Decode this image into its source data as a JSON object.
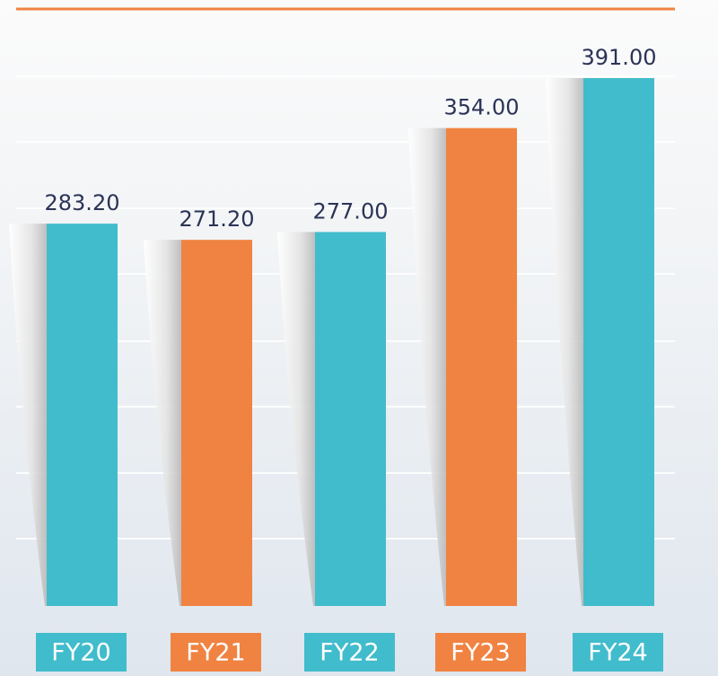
{
  "chart_data": {
    "type": "bar",
    "categories": [
      "FY20",
      "FY21",
      "FY22",
      "FY23",
      "FY24"
    ],
    "values": [
      283.2,
      271.2,
      277.0,
      354.0,
      391.0
    ],
    "value_labels": [
      "283.20",
      "271.20",
      "277.00",
      "354.00",
      "391.00"
    ],
    "colors": [
      "#41bccc",
      "#f08341",
      "#41bccc",
      "#f08341",
      "#41bccc"
    ]
  }
}
